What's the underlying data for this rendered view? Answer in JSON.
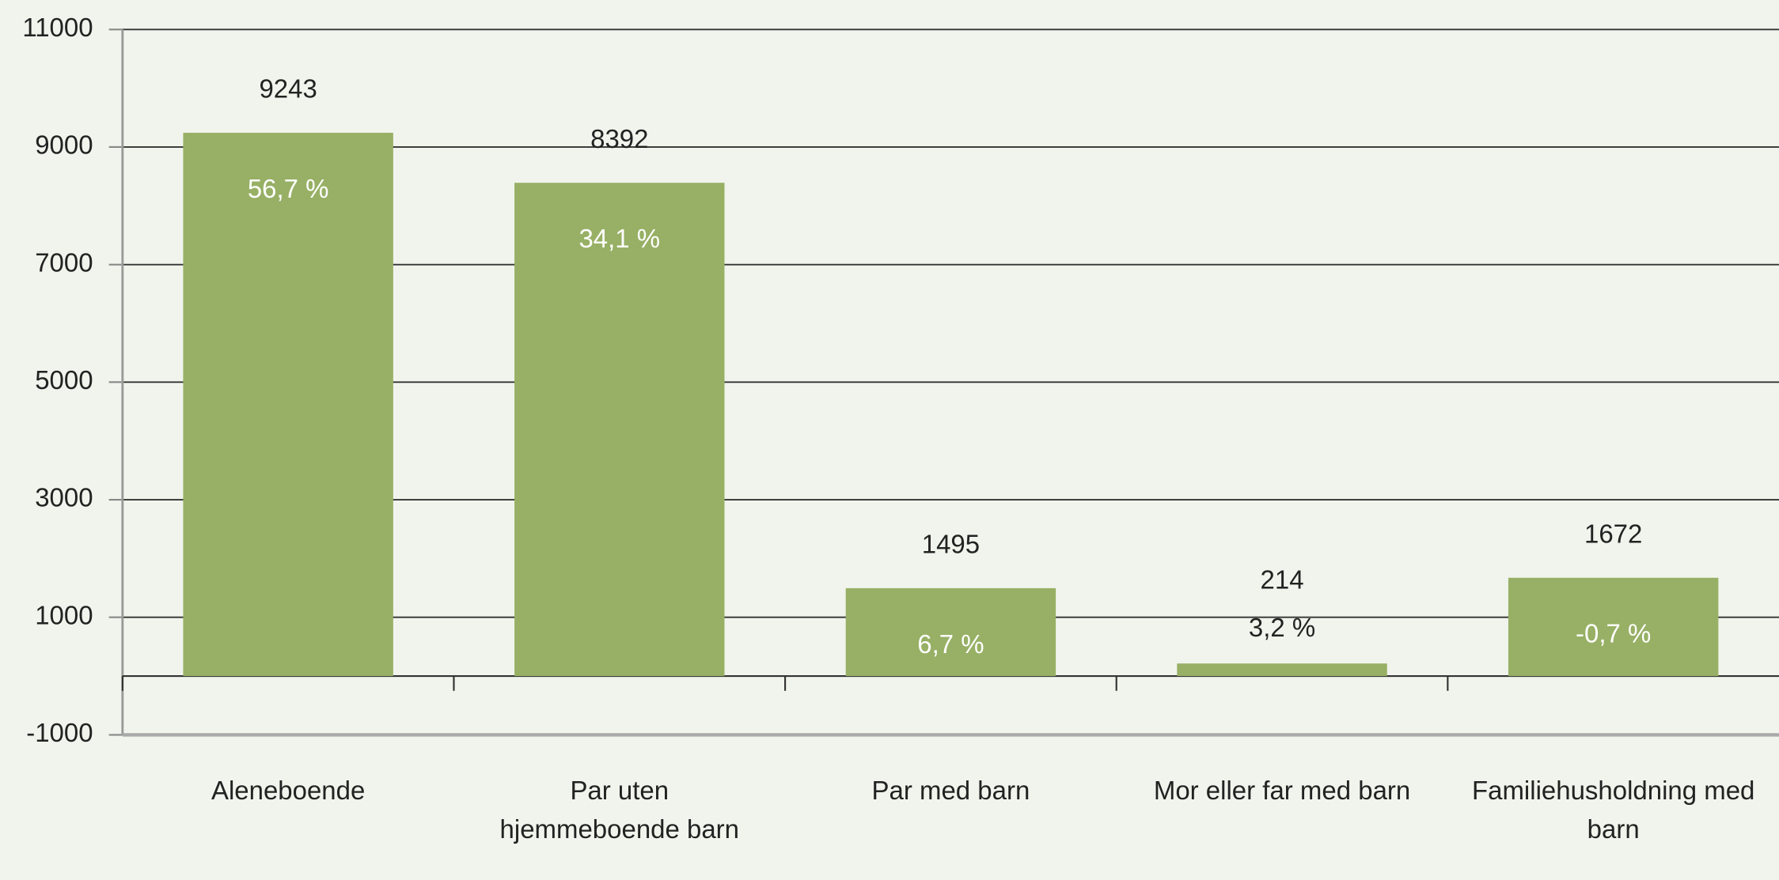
{
  "chart_data": {
    "type": "bar",
    "categories": [
      "Aleneboende",
      "Par uten hjemmeboende barn",
      "Par med barn",
      "Mor eller far med barn",
      "Familiehusholdning med barn"
    ],
    "values": [
      9243,
      8392,
      1495,
      214,
      1672
    ],
    "percent_labels": [
      "56,7 %",
      "34,1 %",
      "6,7 %",
      "3,2 %",
      "-0,7 %"
    ],
    "color": "#97b065",
    "ylim": [
      -1000,
      11000
    ],
    "yticks": [
      -1000,
      1000,
      3000,
      5000,
      7000,
      9000,
      11000
    ],
    "grid": true
  }
}
